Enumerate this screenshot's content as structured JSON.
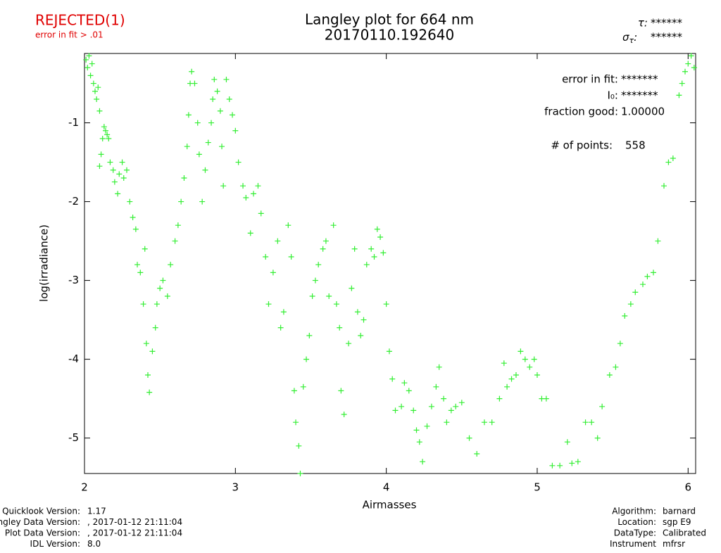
{
  "header": {
    "status": "REJECTED(1)",
    "status_note": "error in fit > .01",
    "tau": {
      "label": "τ:",
      "value": "******"
    },
    "sigma": {
      "symbol": "σ",
      "sub": "τ",
      "colon": ":",
      "value": "******"
    }
  },
  "stats": [
    {
      "label": "error in fit:",
      "value": "*******"
    },
    {
      "label": "I₀:",
      "value": "*******"
    },
    {
      "label": "fraction good:",
      "value": "1.00000"
    },
    {
      "label": "# of points:",
      "value": "558"
    }
  ],
  "footer_left": [
    {
      "label": "Quicklook Version:",
      "value": "1.17"
    },
    {
      "label": "Langley Data Version:",
      "value": ", 2017-01-12 21:11:04"
    },
    {
      "label": "Plot Data Version:",
      "value": ", 2017-01-12 21:11:04"
    },
    {
      "label": "IDL Version:",
      "value": "8.0"
    }
  ],
  "footer_right": [
    {
      "label": "Algorithm:",
      "value": "barnard"
    },
    {
      "label": "Location:",
      "value": "sgp E9"
    },
    {
      "label": "DataType:",
      "value": "Calibrated"
    },
    {
      "label": "Instrument",
      "value": "mfrsr"
    }
  ],
  "chart_data": {
    "type": "scatter",
    "title": "Langley plot for 664 nm",
    "subtitle": "20170110.192640",
    "x_label": "Airmasses",
    "y_label": "log(irradiance)",
    "color": "#33ee33",
    "xlim": [
      2,
      6.05
    ],
    "ylim": [
      -5.45,
      -0.12
    ],
    "xticks": [
      2,
      3,
      4,
      5,
      6
    ],
    "yticks": [
      -5,
      -4,
      -3,
      -2,
      -1
    ],
    "x": [
      2.01,
      2.02,
      2.03,
      2.04,
      2.05,
      2.06,
      2.07,
      2.08,
      2.09,
      2.1,
      2.1,
      2.11,
      2.12,
      2.13,
      2.14,
      2.15,
      2.16,
      2.17,
      2.19,
      2.2,
      2.22,
      2.23,
      2.25,
      2.26,
      2.28,
      2.3,
      2.32,
      2.34,
      2.35,
      2.37,
      2.39,
      2.4,
      2.41,
      2.42,
      2.43,
      2.45,
      2.47,
      2.48,
      2.5,
      2.52,
      2.55,
      2.57,
      2.6,
      2.62,
      2.64,
      2.66,
      2.68,
      2.69,
      2.7,
      2.71,
      2.73,
      2.75,
      2.76,
      2.78,
      2.8,
      2.82,
      2.84,
      2.85,
      2.86,
      2.88,
      2.9,
      2.91,
      2.92,
      2.94,
      2.96,
      2.98,
      3.0,
      3.02,
      3.05,
      3.07,
      3.1,
      3.12,
      3.15,
      3.17,
      3.2,
      3.22,
      3.25,
      3.28,
      3.3,
      3.32,
      3.35,
      3.37,
      3.39,
      3.4,
      3.42,
      3.43,
      3.45,
      3.47,
      3.49,
      3.51,
      3.53,
      3.55,
      3.58,
      3.6,
      3.62,
      3.65,
      3.67,
      3.69,
      3.7,
      3.72,
      3.75,
      3.77,
      3.79,
      3.81,
      3.83,
      3.85,
      3.87,
      3.9,
      3.92,
      3.94,
      3.96,
      3.98,
      4.0,
      4.02,
      4.04,
      4.06,
      4.1,
      4.12,
      4.15,
      4.18,
      4.2,
      4.22,
      4.24,
      4.27,
      4.3,
      4.33,
      4.35,
      4.38,
      4.4,
      4.43,
      4.46,
      4.5,
      4.55,
      4.6,
      4.65,
      4.7,
      4.75,
      4.78,
      4.8,
      4.83,
      4.86,
      4.89,
      4.92,
      4.95,
      4.98,
      5.0,
      5.03,
      5.06,
      5.1,
      5.15,
      5.2,
      5.23,
      5.27,
      5.32,
      5.36,
      5.4,
      5.43,
      5.48,
      5.52,
      5.55,
      5.58,
      5.62,
      5.65,
      5.7,
      5.73,
      5.77,
      5.8,
      5.84,
      5.87,
      5.9,
      5.94,
      5.96,
      5.98,
      6.0,
      6.02,
      6.04
    ],
    "values": [
      -0.2,
      -0.3,
      -0.15,
      -0.4,
      -0.25,
      -0.5,
      -0.6,
      -0.7,
      -0.55,
      -0.85,
      -1.55,
      -1.4,
      -1.2,
      -1.05,
      -1.1,
      -1.15,
      -1.2,
      -1.5,
      -1.6,
      -1.75,
      -1.9,
      -1.65,
      -1.5,
      -1.7,
      -1.6,
      -2.0,
      -2.2,
      -2.35,
      -2.8,
      -2.9,
      -3.3,
      -2.6,
      -3.8,
      -4.2,
      -4.42,
      -3.9,
      -3.6,
      -3.3,
      -3.1,
      -3.0,
      -3.2,
      -2.8,
      -2.5,
      -2.3,
      -2.0,
      -1.7,
      -1.3,
      -0.9,
      -0.5,
      -0.35,
      -0.5,
      -1.0,
      -1.4,
      -2.0,
      -1.6,
      -1.25,
      -1.0,
      -0.7,
      -0.45,
      -0.6,
      -0.85,
      -1.3,
      -1.8,
      -0.45,
      -0.7,
      -0.9,
      -1.1,
      -1.5,
      -1.8,
      -1.95,
      -2.4,
      -1.9,
      -1.8,
      -2.15,
      -2.7,
      -3.3,
      -2.9,
      -2.5,
      -3.6,
      -3.4,
      -2.3,
      -2.7,
      -4.4,
      -4.8,
      -5.1,
      -5.45,
      -4.35,
      -4.0,
      -3.7,
      -3.2,
      -3.0,
      -2.8,
      -2.6,
      -2.5,
      -3.2,
      -2.3,
      -3.3,
      -3.6,
      -4.4,
      -4.7,
      -3.8,
      -3.1,
      -2.6,
      -3.4,
      -3.7,
      -3.5,
      -2.8,
      -2.6,
      -2.7,
      -2.35,
      -2.45,
      -2.65,
      -3.3,
      -3.9,
      -4.25,
      -4.65,
      -4.6,
      -4.3,
      -4.4,
      -4.65,
      -4.9,
      -5.05,
      -5.3,
      -4.85,
      -4.6,
      -4.35,
      -4.1,
      -4.5,
      -4.8,
      -4.65,
      -4.6,
      -4.55,
      -5.0,
      -5.2,
      -4.8,
      -4.8,
      -4.5,
      -4.05,
      -4.35,
      -4.25,
      -4.2,
      -3.9,
      -4.0,
      -4.1,
      -4.0,
      -4.2,
      -4.5,
      -4.5,
      -5.35,
      -5.35,
      -5.05,
      -5.32,
      -5.3,
      -4.8,
      -4.8,
      -5.0,
      -4.6,
      -4.2,
      -4.1,
      -3.8,
      -3.45,
      -3.3,
      -3.15,
      -3.05,
      -2.95,
      -2.9,
      -2.5,
      -1.8,
      -1.5,
      -1.45,
      -0.65,
      -0.5,
      -0.35,
      -0.25,
      -0.15,
      -0.3
    ]
  }
}
